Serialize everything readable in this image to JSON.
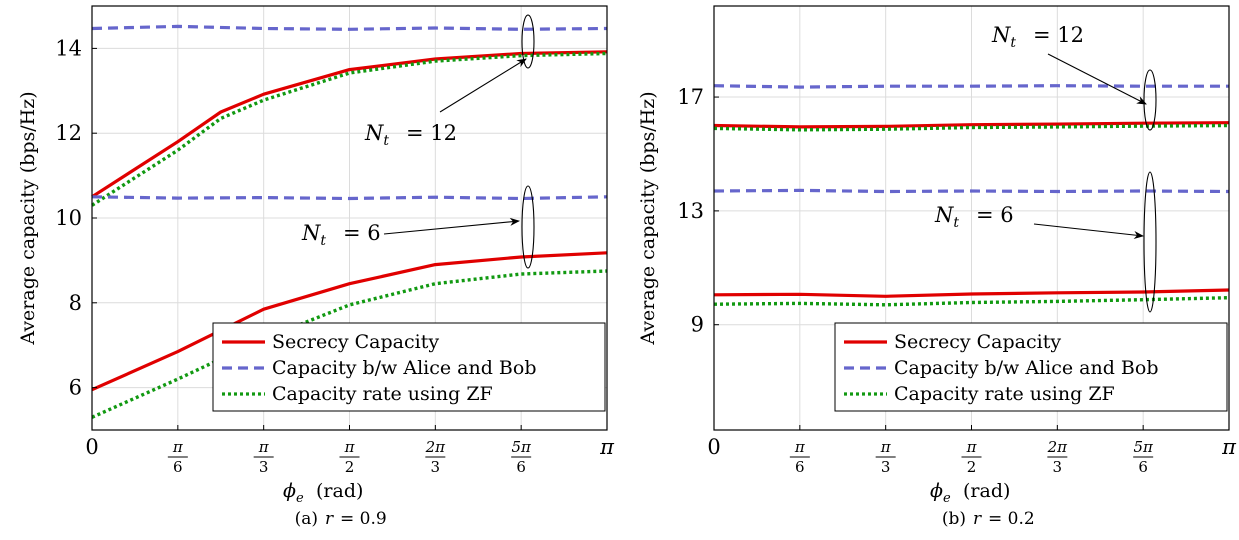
{
  "colors": {
    "secrecy": "#e00000",
    "bob": "#6666cc",
    "zf": "#119911",
    "grid": "#dcdcdc"
  },
  "legend_entries": [
    "Secrecy Capacity",
    "Capacity b/w Alice and Bob",
    "Capacity rate using ZF"
  ],
  "xtick_labels": [
    {
      "type": "plain",
      "text": "0"
    },
    {
      "type": "frac",
      "num": "π",
      "den": "6"
    },
    {
      "type": "frac",
      "num": "π",
      "den": "3"
    },
    {
      "type": "frac",
      "num": "π",
      "den": "2"
    },
    {
      "type": "frac",
      "num": "2π",
      "den": "3"
    },
    {
      "type": "frac",
      "num": "5π",
      "den": "6"
    },
    {
      "type": "plain",
      "text": "π"
    }
  ],
  "chart_data": [
    {
      "type": "line",
      "caption": "(a) r = 0.9",
      "xlabel": "φe (rad)",
      "ylabel": "Average capacity (bps/Hz)",
      "xlim": [
        0,
        3.14159
      ],
      "ylim": [
        5.0,
        15.0
      ],
      "xticks": [
        0,
        0.5236,
        1.0472,
        1.5708,
        2.0944,
        2.618,
        3.14159
      ],
      "yticks": [
        6,
        8,
        10,
        12,
        14
      ],
      "grid": true,
      "legend_position": "bottom-right",
      "annotations": [
        {
          "text": "Nt = 12",
          "target": "upper group"
        },
        {
          "text": "Nt = 6",
          "target": "lower group"
        }
      ],
      "series": [
        {
          "name": "Secrecy Capacity",
          "group": "Nt = 12",
          "style": "secrecy",
          "x": [
            0,
            0.5236,
            0.7854,
            1.0472,
            1.5708,
            2.0944,
            2.618,
            3.14159
          ],
          "y": [
            10.5,
            11.8,
            12.5,
            12.92,
            13.5,
            13.75,
            13.88,
            13.92
          ]
        },
        {
          "name": "Capacity b/w Alice and Bob",
          "group": "Nt = 12",
          "style": "bob",
          "x": [
            0,
            0.5236,
            1.0472,
            1.5708,
            2.0944,
            2.618,
            3.14159
          ],
          "y": [
            14.47,
            14.52,
            14.47,
            14.45,
            14.48,
            14.45,
            14.47
          ]
        },
        {
          "name": "Capacity rate using ZF",
          "group": "Nt = 12",
          "style": "zf",
          "x": [
            0,
            0.5236,
            0.7854,
            1.0472,
            1.5708,
            2.0944,
            2.618,
            3.14159
          ],
          "y": [
            10.3,
            11.6,
            12.35,
            12.78,
            13.42,
            13.7,
            13.83,
            13.88
          ]
        },
        {
          "name": "Secrecy Capacity",
          "group": "Nt = 6",
          "style": "secrecy",
          "x": [
            0,
            0.5236,
            1.0472,
            1.5708,
            2.0944,
            2.618,
            3.14159
          ],
          "y": [
            5.95,
            6.85,
            7.85,
            8.45,
            8.9,
            9.08,
            9.18
          ]
        },
        {
          "name": "Capacity b/w Alice and Bob",
          "group": "Nt = 6",
          "style": "bob",
          "x": [
            0,
            0.5236,
            1.0472,
            1.5708,
            2.0944,
            2.618,
            3.14159
          ],
          "y": [
            10.5,
            10.47,
            10.48,
            10.46,
            10.49,
            10.46,
            10.5
          ]
        },
        {
          "name": "Capacity rate using ZF",
          "group": "Nt = 6",
          "style": "zf",
          "x": [
            0,
            0.5236,
            1.0472,
            1.5708,
            2.0944,
            2.618,
            3.14159
          ],
          "y": [
            5.3,
            6.2,
            7.15,
            7.95,
            8.45,
            8.68,
            8.75
          ]
        }
      ]
    },
    {
      "type": "line",
      "caption": "(b) r = 0.2",
      "xlabel": "φe (rad)",
      "ylabel": "Average capacity (bps/Hz)",
      "xlim": [
        0,
        3.14159
      ],
      "ylim": [
        5.3,
        20.2
      ],
      "xticks": [
        0,
        0.5236,
        1.0472,
        1.5708,
        2.0944,
        2.618,
        3.14159
      ],
      "yticks": [
        9,
        13,
        17
      ],
      "grid": true,
      "legend_position": "bottom-right",
      "annotations": [
        {
          "text": "Nt = 12",
          "target": "upper group"
        },
        {
          "text": "Nt = 6",
          "target": "lower group"
        }
      ],
      "series": [
        {
          "name": "Secrecy Capacity",
          "group": "Nt = 12",
          "style": "secrecy",
          "x": [
            0,
            0.5236,
            1.0472,
            1.5708,
            2.0944,
            2.618,
            3.14159
          ],
          "y": [
            16.0,
            15.95,
            15.97,
            16.03,
            16.05,
            16.08,
            16.1
          ]
        },
        {
          "name": "Capacity b/w Alice and Bob",
          "group": "Nt = 12",
          "style": "bob",
          "x": [
            0,
            0.5236,
            1.0472,
            1.5708,
            2.0944,
            2.618,
            3.14159
          ],
          "y": [
            17.4,
            17.35,
            17.38,
            17.38,
            17.4,
            17.38,
            17.38
          ]
        },
        {
          "name": "Capacity rate using ZF",
          "group": "Nt = 12",
          "style": "zf",
          "x": [
            0,
            0.5236,
            1.0472,
            1.5708,
            2.0944,
            2.618,
            3.14159
          ],
          "y": [
            15.9,
            15.85,
            15.87,
            15.93,
            15.95,
            15.98,
            16.0
          ]
        },
        {
          "name": "Secrecy Capacity",
          "group": "Nt = 6",
          "style": "secrecy",
          "x": [
            0,
            0.5236,
            1.0472,
            1.5708,
            2.0944,
            2.618,
            3.14159
          ],
          "y": [
            10.05,
            10.07,
            10.0,
            10.08,
            10.12,
            10.15,
            10.22
          ]
        },
        {
          "name": "Capacity b/w Alice and Bob",
          "group": "Nt = 6",
          "style": "bob",
          "x": [
            0,
            0.5236,
            1.0472,
            1.5708,
            2.0944,
            2.618,
            3.14159
          ],
          "y": [
            13.7,
            13.72,
            13.68,
            13.7,
            13.68,
            13.7,
            13.68
          ]
        },
        {
          "name": "Capacity rate using ZF",
          "group": "Nt = 6",
          "style": "zf",
          "x": [
            0,
            0.5236,
            1.0472,
            1.5708,
            2.0944,
            2.618,
            3.14159
          ],
          "y": [
            9.72,
            9.75,
            9.7,
            9.78,
            9.82,
            9.88,
            9.95
          ]
        }
      ]
    }
  ]
}
